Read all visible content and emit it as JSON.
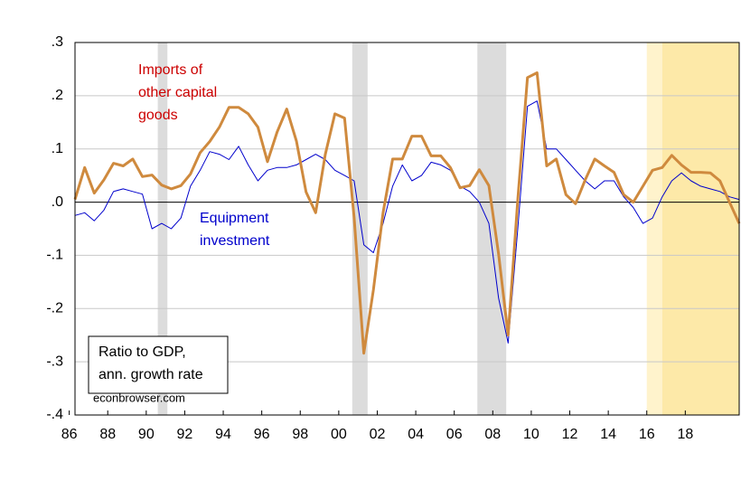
{
  "chart_data": {
    "type": "line",
    "annotations": {
      "imports": [
        "Imports of",
        "other capital",
        "goods"
      ],
      "equipment": [
        "Equipment",
        "investment"
      ],
      "box": [
        "Ratio to GDP,",
        "ann. growth rate"
      ],
      "source": "econbrowser.com"
    },
    "x": [
      1986.3,
      1986.8,
      1987.3,
      1987.8,
      1988.3,
      1988.8,
      1989.3,
      1989.8,
      1990.3,
      1990.8,
      1991.3,
      1991.8,
      1992.3,
      1992.8,
      1993.3,
      1993.8,
      1994.3,
      1994.8,
      1995.3,
      1995.8,
      1996.3,
      1996.8,
      1997.3,
      1997.8,
      1998.3,
      1998.8,
      1999.3,
      1999.8,
      2000.3,
      2000.8,
      2001.3,
      2001.8,
      2002.3,
      2002.8,
      2003.3,
      2003.8,
      2004.3,
      2004.8,
      2005.3,
      2005.8,
      2006.3,
      2006.8,
      2007.3,
      2007.8,
      2008.3,
      2008.8,
      2009.3,
      2009.8,
      2010.3,
      2010.8,
      2011.3,
      2011.8,
      2012.3,
      2012.8,
      2013.3,
      2013.8,
      2014.3,
      2014.8,
      2015.3,
      2015.8,
      2016.3,
      2016.8,
      2017.3,
      2017.8,
      2018.3,
      2018.8,
      2019.3,
      2019.8,
      2020.3,
      2020.8
    ],
    "series": [
      {
        "name": "Imports of other capital goods",
        "color": "#cf8a3e",
        "width": 3,
        "values": [
          0.005,
          0.065,
          0.017,
          0.042,
          0.073,
          0.068,
          0.081,
          0.048,
          0.051,
          0.032,
          0.025,
          0.031,
          0.053,
          0.093,
          0.114,
          0.141,
          0.178,
          0.178,
          0.166,
          0.141,
          0.076,
          0.132,
          0.175,
          0.115,
          0.019,
          -0.02,
          0.09,
          0.166,
          0.158,
          -0.029,
          -0.284,
          -0.165,
          -0.02,
          0.081,
          0.081,
          0.124,
          0.124,
          0.087,
          0.087,
          0.065,
          0.027,
          0.031,
          0.061,
          0.031,
          -0.097,
          -0.25,
          0.005,
          0.234,
          0.243,
          0.068,
          0.081,
          0.014,
          -0.003,
          0.042,
          0.081,
          0.068,
          0.056,
          0.014,
          0.0,
          0.03,
          0.06,
          0.065,
          0.088,
          0.07,
          0.056,
          0.056,
          0.055,
          0.04,
          0.0,
          -0.04
        ]
      },
      {
        "name": "Equipment investment",
        "color": "#0000cc",
        "width": 1,
        "values": [
          -0.025,
          -0.02,
          -0.035,
          -0.015,
          0.02,
          0.025,
          0.02,
          0.015,
          -0.05,
          -0.04,
          -0.05,
          -0.03,
          0.03,
          0.06,
          0.095,
          0.09,
          0.08,
          0.105,
          0.07,
          0.04,
          0.06,
          0.065,
          0.065,
          0.07,
          0.08,
          0.09,
          0.08,
          0.06,
          0.05,
          0.04,
          -0.08,
          -0.095,
          -0.04,
          0.03,
          0.07,
          0.04,
          0.05,
          0.075,
          0.07,
          0.06,
          0.03,
          0.02,
          0.0,
          -0.04,
          -0.18,
          -0.265,
          -0.05,
          0.18,
          0.19,
          0.1,
          0.1,
          0.08,
          0.06,
          0.04,
          0.025,
          0.04,
          0.04,
          0.01,
          -0.01,
          -0.04,
          -0.03,
          0.01,
          0.04,
          0.055,
          0.04,
          0.03,
          0.025,
          0.02,
          0.01,
          0.005
        ]
      }
    ],
    "shading": [
      {
        "start": 1990.6,
        "end": 1991.1,
        "color": "#dcdcdc"
      },
      {
        "start": 2000.7,
        "end": 2001.5,
        "color": "#dcdcdc"
      },
      {
        "start": 2007.2,
        "end": 2008.7,
        "color": "#dcdcdc"
      },
      {
        "start": 2016.0,
        "end": 2016.8,
        "color": "#fff3cc"
      },
      {
        "start": 2016.8,
        "end": 2020.8,
        "color": "#fde9a8"
      }
    ],
    "xlim": [
      1986.3,
      2020.8
    ],
    "xticks": [
      {
        "value": 1986,
        "label": "86"
      },
      {
        "value": 1988,
        "label": "88"
      },
      {
        "value": 1990,
        "label": "90"
      },
      {
        "value": 1992,
        "label": "92"
      },
      {
        "value": 1994,
        "label": "94"
      },
      {
        "value": 1996,
        "label": "96"
      },
      {
        "value": 1998,
        "label": "98"
      },
      {
        "value": 2000,
        "label": "00"
      },
      {
        "value": 2002,
        "label": "02"
      },
      {
        "value": 2004,
        "label": "04"
      },
      {
        "value": 2006,
        "label": "06"
      },
      {
        "value": 2008,
        "label": "08"
      },
      {
        "value": 2010,
        "label": "10"
      },
      {
        "value": 2012,
        "label": "12"
      },
      {
        "value": 2014,
        "label": "14"
      },
      {
        "value": 2016,
        "label": "16"
      },
      {
        "value": 2018,
        "label": "18"
      }
    ],
    "ylim": [
      -0.4,
      0.3
    ],
    "yticks": [
      {
        "value": -0.4,
        "label": "-.4"
      },
      {
        "value": -0.3,
        "label": "-.3"
      },
      {
        "value": -0.2,
        "label": "-.2"
      },
      {
        "value": -0.1,
        "label": "-.1"
      },
      {
        "value": 0,
        "label": ".0"
      },
      {
        "value": 0.1,
        "label": ".1"
      },
      {
        "value": 0.2,
        "label": ".2"
      },
      {
        "value": 0.3,
        "label": ".3"
      }
    ],
    "grid": true
  }
}
